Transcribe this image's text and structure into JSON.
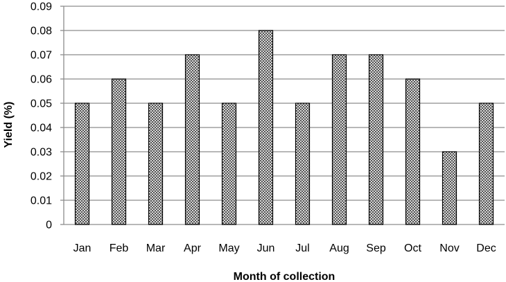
{
  "chart_data": {
    "type": "bar",
    "title": "",
    "xlabel": "Month of collection",
    "ylabel": "Yield (%)",
    "categories": [
      "Jan",
      "Feb",
      "Mar",
      "Apr",
      "May",
      "Jun",
      "Jul",
      "Aug",
      "Sep",
      "Oct",
      "Nov",
      "Dec"
    ],
    "values": [
      0.05,
      0.06,
      0.05,
      0.07,
      0.05,
      0.08,
      0.05,
      0.07,
      0.07,
      0.06,
      0.03,
      0.05
    ],
    "ylim": [
      0,
      0.09
    ],
    "yticks": [
      "0",
      "0.01",
      "0.02",
      "0.03",
      "0.04",
      "0.05",
      "0.06",
      "0.07",
      "0.08",
      "0.09"
    ],
    "grid": "horizontal",
    "legend": "none",
    "bar_fill": "cross-hatch",
    "colors": {
      "bar_stroke": "#000000",
      "bar_hatch": "#333333",
      "gridline": "#8c8c8c",
      "axis": "#8c8c8c"
    }
  }
}
